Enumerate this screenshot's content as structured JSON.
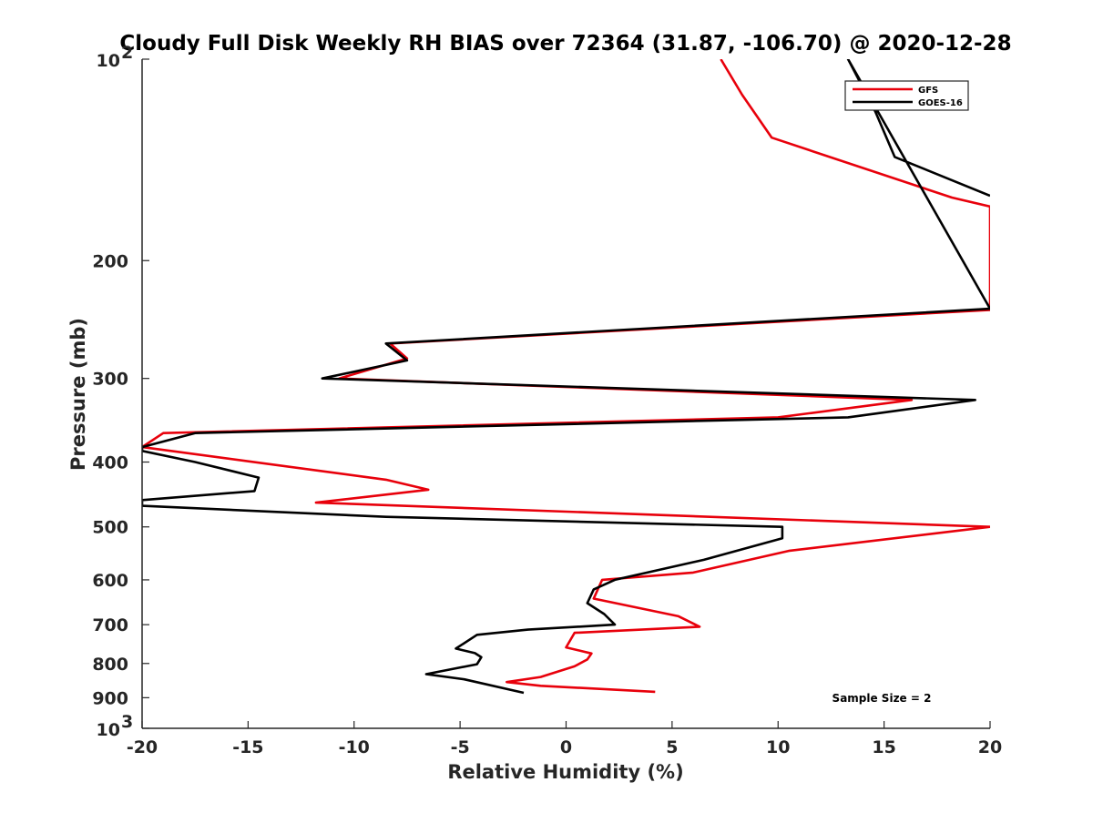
{
  "chart_data": {
    "type": "line",
    "title": "Cloudy Full Disk Weekly RH BIAS over 72364 (31.87, -106.70) @ 2020-12-28",
    "xlabel": "Relative Humidity (%)",
    "ylabel": "Pressure (mb)",
    "xlim": [
      -20,
      20
    ],
    "ylim": [
      1000,
      100
    ],
    "yscale": "log",
    "grid": false,
    "legend_position": "top-right",
    "x_ticks": [
      {
        "value": -20,
        "label": "-20"
      },
      {
        "value": -15,
        "label": "-15"
      },
      {
        "value": -10,
        "label": "-10"
      },
      {
        "value": -5,
        "label": "-5"
      },
      {
        "value": 0,
        "label": "0"
      },
      {
        "value": 5,
        "label": "5"
      },
      {
        "value": 10,
        "label": "10"
      },
      {
        "value": 15,
        "label": "15"
      },
      {
        "value": 20,
        "label": "20"
      }
    ],
    "y_ticks": [
      {
        "value": 100,
        "label": "10",
        "exponent": "2"
      },
      {
        "value": 200,
        "label": "200"
      },
      {
        "value": 300,
        "label": "300"
      },
      {
        "value": 400,
        "label": "400"
      },
      {
        "value": 500,
        "label": "500"
      },
      {
        "value": 600,
        "label": "600"
      },
      {
        "value": 700,
        "label": "700"
      },
      {
        "value": 800,
        "label": "800"
      },
      {
        "value": 900,
        "label": "900"
      },
      {
        "value": 1000,
        "label": "10",
        "exponent": "3"
      }
    ],
    "series": [
      {
        "name": "GFS",
        "color": "#e8000b",
        "points": [
          [
            7.3,
            100
          ],
          [
            8.3,
            113
          ],
          [
            9.7,
            131
          ],
          [
            18.2,
            161
          ],
          [
            20,
            166
          ],
          [
            20,
            237
          ],
          [
            -8.3,
            266
          ],
          [
            -7.5,
            280
          ],
          [
            -10.7,
            300
          ],
          [
            16.3,
            323
          ],
          [
            10.0,
            343
          ],
          [
            -19.0,
            362
          ],
          [
            -20,
            380
          ],
          [
            -8.5,
            425
          ],
          [
            -6.5,
            440
          ],
          [
            -11.8,
            460
          ],
          [
            20,
            500
          ],
          [
            10.5,
            543
          ],
          [
            6.0,
            585
          ],
          [
            1.7,
            600
          ],
          [
            1.3,
            640
          ],
          [
            5.3,
            680
          ],
          [
            6.3,
            705
          ],
          [
            0.4,
            720
          ],
          [
            0.0,
            757
          ],
          [
            1.2,
            773
          ],
          [
            1.0,
            789
          ],
          [
            0.4,
            808
          ],
          [
            -1.2,
            838
          ],
          [
            -2.8,
            853
          ],
          [
            -1.2,
            864
          ],
          [
            4.2,
            882
          ]
        ]
      },
      {
        "name": "GOES-16",
        "color": "#000000",
        "points": [
          [
            20,
            160
          ],
          [
            15.5,
            140
          ],
          [
            14.6,
            120
          ],
          [
            13.3,
            100
          ],
          [
            20,
            236
          ],
          [
            -8.5,
            266
          ],
          [
            -7.5,
            282
          ],
          [
            -11.5,
            300
          ],
          [
            19.3,
            323
          ],
          [
            13.3,
            343
          ],
          [
            -17.5,
            362
          ],
          [
            -20,
            380
          ],
          [
            -20,
            385
          ],
          [
            -17.5,
            400
          ],
          [
            -14.5,
            422
          ],
          [
            -14.7,
            442
          ],
          [
            -20,
            456
          ],
          [
            -20,
            465
          ],
          [
            -8.5,
            483
          ],
          [
            10.2,
            500
          ],
          [
            10.2,
            520
          ],
          [
            6.5,
            560
          ],
          [
            2.3,
            600
          ],
          [
            1.3,
            620
          ],
          [
            1.0,
            650
          ],
          [
            1.8,
            675
          ],
          [
            2.3,
            700
          ],
          [
            -1.8,
            712
          ],
          [
            -4.2,
            725
          ],
          [
            -5.2,
            760
          ],
          [
            -4.3,
            772
          ],
          [
            -4.0,
            783
          ],
          [
            -4.2,
            802
          ],
          [
            -6.6,
            830
          ],
          [
            -4.8,
            845
          ],
          [
            -2.0,
            885
          ]
        ]
      }
    ],
    "annotation": "Sample Size = 2"
  }
}
